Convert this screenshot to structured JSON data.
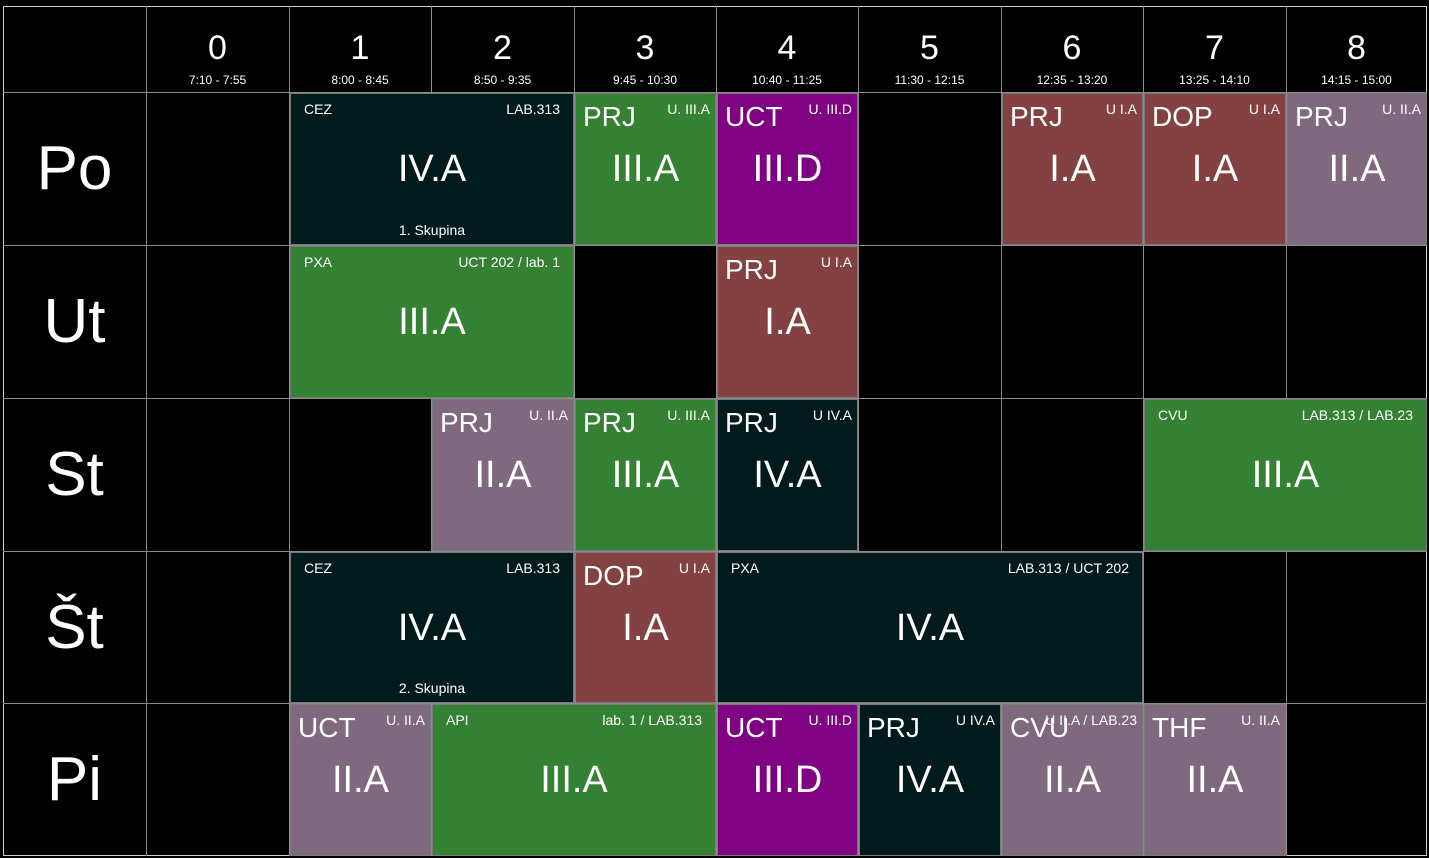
{
  "periods": [
    {
      "num": "0",
      "time": "7:10 - 7:55"
    },
    {
      "num": "1",
      "time": "8:00 - 8:45"
    },
    {
      "num": "2",
      "time": "8:50 - 9:35"
    },
    {
      "num": "3",
      "time": "9:45 - 10:30"
    },
    {
      "num": "4",
      "time": "10:40 - 11:25"
    },
    {
      "num": "5",
      "time": "11:30 - 12:15"
    },
    {
      "num": "6",
      "time": "12:35 - 13:20"
    },
    {
      "num": "7",
      "time": "13:25 - 14:10"
    },
    {
      "num": "8",
      "time": "14:15 - 15:00"
    }
  ],
  "days": [
    "Po",
    "Ut",
    "St",
    "Št",
    "Pi"
  ],
  "colors": {
    "dark": "#011a1c",
    "green": "#358134",
    "purple": "#7f0283",
    "brown": "#834241",
    "mauve": "#7e697f"
  },
  "lessons": [
    {
      "day": 0,
      "start": 1,
      "span": 2,
      "subject": "CEZ",
      "room": "LAB.313",
      "cls": "IV.A",
      "group": "1. Skupina",
      "color": "dark"
    },
    {
      "day": 0,
      "start": 3,
      "span": 1,
      "subject": "PRJ",
      "room": "U. III.A",
      "cls": "III.A",
      "color": "green"
    },
    {
      "day": 0,
      "start": 4,
      "span": 1,
      "subject": "UCT",
      "room": "U. III.D",
      "cls": "III.D",
      "color": "purple"
    },
    {
      "day": 0,
      "start": 6,
      "span": 1,
      "subject": "PRJ",
      "room": "U I.A",
      "cls": "I.A",
      "color": "brown"
    },
    {
      "day": 0,
      "start": 7,
      "span": 1,
      "subject": "DOP",
      "room": "U I.A",
      "cls": "I.A",
      "color": "brown"
    },
    {
      "day": 0,
      "start": 8,
      "span": 1,
      "subject": "PRJ",
      "room": "U. II.A",
      "cls": "II.A",
      "color": "mauve"
    },
    {
      "day": 1,
      "start": 1,
      "span": 2,
      "subject": "PXA",
      "room": "UCT 202 / lab. 1",
      "cls": "III.A",
      "color": "green"
    },
    {
      "day": 1,
      "start": 4,
      "span": 1,
      "subject": "PRJ",
      "room": "U I.A",
      "cls": "I.A",
      "color": "brown"
    },
    {
      "day": 2,
      "start": 2,
      "span": 1,
      "subject": "PRJ",
      "room": "U. II.A",
      "cls": "II.A",
      "color": "mauve"
    },
    {
      "day": 2,
      "start": 3,
      "span": 1,
      "subject": "PRJ",
      "room": "U. III.A",
      "cls": "III.A",
      "color": "green"
    },
    {
      "day": 2,
      "start": 4,
      "span": 1,
      "subject": "PRJ",
      "room": "U IV.A",
      "cls": "IV.A",
      "color": "dark"
    },
    {
      "day": 2,
      "start": 7,
      "span": 2,
      "subject": "CVU",
      "room": "LAB.313 / LAB.23",
      "cls": "III.A",
      "color": "green"
    },
    {
      "day": 3,
      "start": 1,
      "span": 2,
      "subject": "CEZ",
      "room": "LAB.313",
      "cls": "IV.A",
      "group": "2. Skupina",
      "color": "dark"
    },
    {
      "day": 3,
      "start": 3,
      "span": 1,
      "subject": "DOP",
      "room": "U I.A",
      "cls": "I.A",
      "color": "brown"
    },
    {
      "day": 3,
      "start": 4,
      "span": 3,
      "subject": "PXA",
      "room": "LAB.313 / UCT 202",
      "cls": "IV.A",
      "color": "dark"
    },
    {
      "day": 4,
      "start": 1,
      "span": 1,
      "subject": "UCT",
      "room": "U. II.A",
      "cls": "II.A",
      "color": "mauve"
    },
    {
      "day": 4,
      "start": 2,
      "span": 2,
      "subject": "API",
      "room": "lab. 1 / LAB.313",
      "cls": "III.A",
      "color": "green"
    },
    {
      "day": 4,
      "start": 4,
      "span": 1,
      "subject": "UCT",
      "room": "U. III.D",
      "cls": "III.D",
      "color": "purple"
    },
    {
      "day": 4,
      "start": 5,
      "span": 1,
      "subject": "PRJ",
      "room": "U IV.A",
      "cls": "IV.A",
      "color": "dark"
    },
    {
      "day": 4,
      "start": 6,
      "span": 1,
      "subject": "CVU",
      "room": "U II.A / LAB.23",
      "cls": "II.A",
      "color": "mauve"
    },
    {
      "day": 4,
      "start": 7,
      "span": 1,
      "subject": "THF",
      "room": "U. II.A",
      "cls": "II.A",
      "color": "mauve"
    }
  ]
}
